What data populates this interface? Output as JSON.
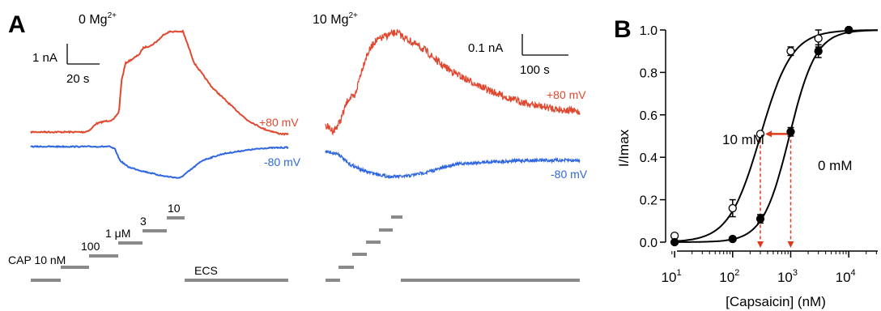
{
  "colors": {
    "red": "#e0482f",
    "blue": "#2f66e0",
    "gray": "#8a8a8a",
    "arrow": "#e03a1e",
    "black": "#000000"
  },
  "panel_a": {
    "label": "A",
    "left_condition": "0 Mg",
    "right_condition": "10 Mg",
    "ion_charge": "2+",
    "left_scale_y": "1 nA",
    "left_scale_x": "20 s",
    "right_scale_y": "0.1 nA",
    "right_scale_x": "100 s",
    "voltage_pos": "+80 mV",
    "voltage_neg": "-80 mV",
    "step_labels": [
      "CAP 10 nM",
      "100",
      "1 μM",
      "3",
      "10"
    ],
    "wash_label": "ECS"
  },
  "chart_data": {
    "type": "scatter",
    "panel_label": "B",
    "xlabel": "[Capsaicin] (nM)",
    "ylabel": "I/Imax",
    "x_scale": "log",
    "xlim": [
      7,
      31623
    ],
    "ylim": [
      0.0,
      1.0
    ],
    "x_ticks": [
      10,
      100,
      1000,
      10000
    ],
    "x_tick_labels": [
      {
        "base": "10",
        "exp": "1"
      },
      {
        "base": "10",
        "exp": "2"
      },
      {
        "base": "10",
        "exp": "3"
      },
      {
        "base": "10",
        "exp": "4"
      }
    ],
    "y_ticks": [
      "0.0",
      "0.2",
      "0.4",
      "0.6",
      "0.8",
      "1.0"
    ],
    "series": [
      {
        "name": "10 mM",
        "marker": "open-circle",
        "x": [
          10,
          100,
          300,
          1000,
          3000,
          10000
        ],
        "y": [
          0.03,
          0.16,
          0.51,
          0.9,
          0.96,
          1.0
        ],
        "err": [
          0.01,
          0.04,
          0.0,
          0.02,
          0.04,
          0.0
        ],
        "fit": {
          "ec50": 300,
          "hill": 1.6
        }
      },
      {
        "name": "0 mM",
        "marker": "filled-circle",
        "x": [
          10,
          100,
          300,
          1000,
          3000,
          10000
        ],
        "y": [
          0.0,
          0.015,
          0.11,
          0.52,
          0.9,
          1.0
        ],
        "err": [
          0.0,
          0.0,
          0.02,
          0.02,
          0.03,
          0.0
        ],
        "fit": {
          "ec50": 950,
          "hill": 1.9
        }
      }
    ],
    "annotation_ec50_x": [
      300,
      1000
    ]
  }
}
